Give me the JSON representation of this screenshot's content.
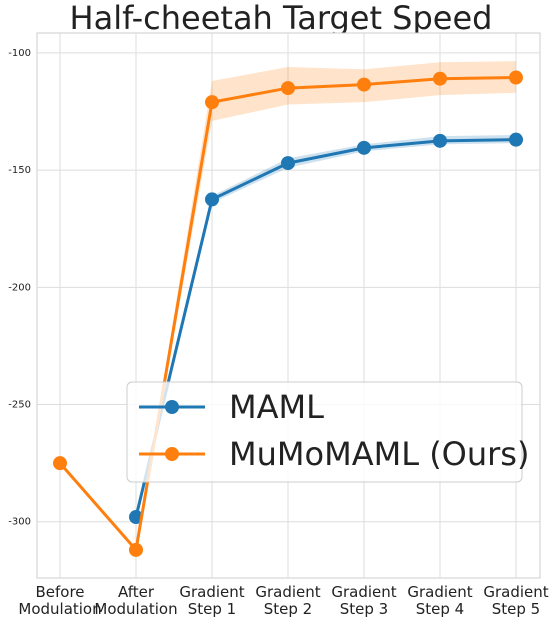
{
  "chart_data": {
    "type": "line",
    "title": "Half-cheetah Target Speed",
    "categories": [
      "Before Modulation",
      "After Modulation",
      "Gradient Step 1",
      "Gradient Step 2",
      "Gradient Step 3",
      "Gradient Step 4",
      "Gradient Step 5"
    ],
    "series": [
      {
        "name": "MAML",
        "color": "#1f77b4",
        "values": [
          null,
          -298,
          -162.5,
          -147,
          -140.5,
          -137.5,
          -137
        ],
        "lower": [
          null,
          -298,
          -164,
          -149,
          -142,
          -139,
          -138.5
        ],
        "upper": [
          null,
          -298,
          -161,
          -145,
          -139,
          -135.5,
          -135
        ]
      },
      {
        "name": "MuMoMAML (Ours)",
        "color": "#ff7f0e",
        "values": [
          -275,
          -312,
          -121,
          -115,
          -113.5,
          -111,
          -110.5
        ],
        "lower": [
          -275,
          -312,
          -129,
          -122,
          -121,
          -118,
          -117
        ],
        "upper": [
          -275,
          -312,
          -112,
          -106,
          -107,
          -104,
          -103.5
        ]
      }
    ],
    "ylim": [
      -324,
      -91.5
    ],
    "yticks": [
      -100,
      -150,
      -200,
      -250,
      -300
    ],
    "grid": true,
    "legend_loc": "lower right"
  }
}
